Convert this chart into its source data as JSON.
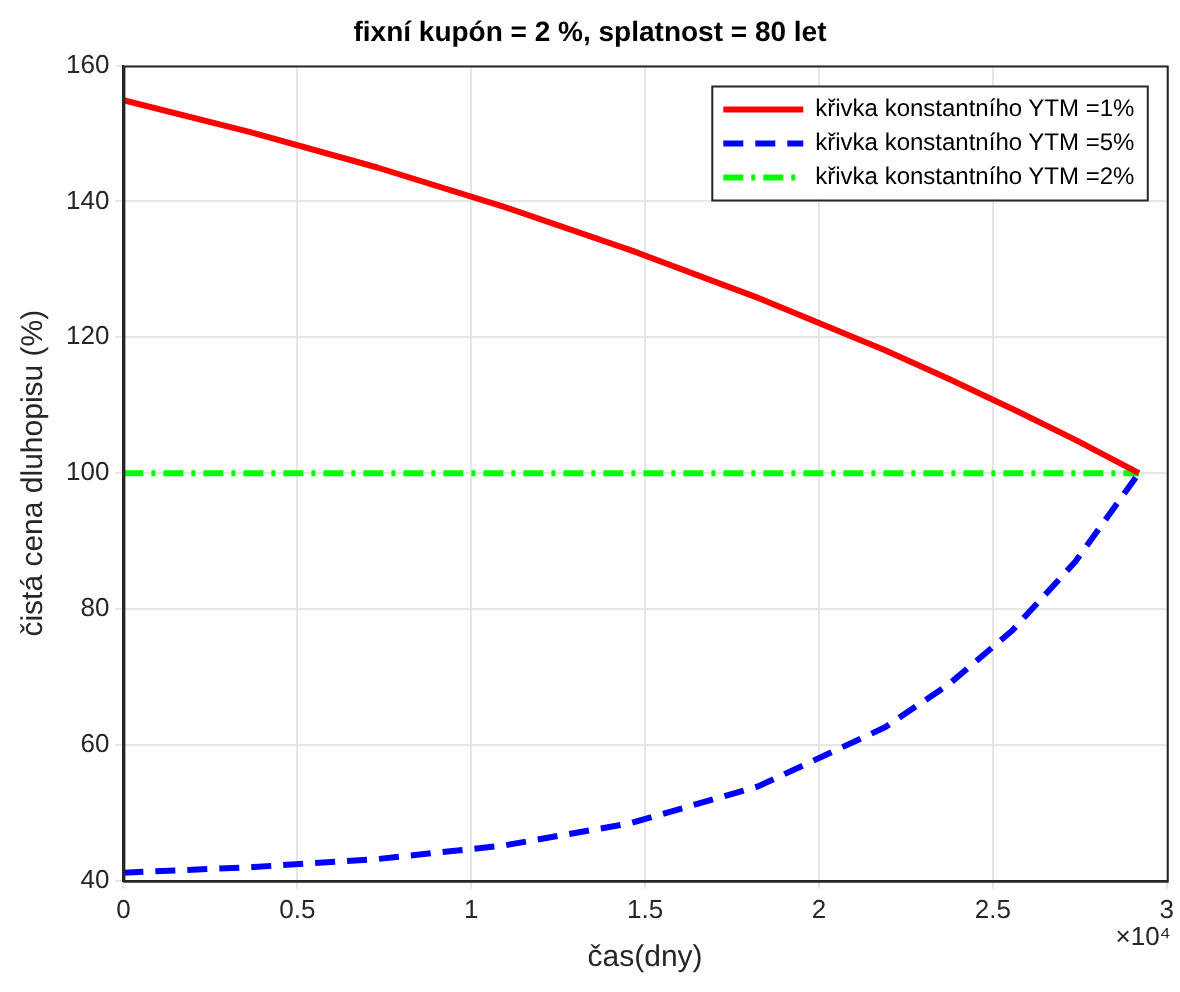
{
  "chart_data": {
    "type": "line",
    "title": "fixní kupón = 2 %, splatnost = 80 let",
    "xlabel": "čas(dny)",
    "ylabel": "čistá cena dluhopisu (%)",
    "x": [
      0,
      0.365,
      0.73,
      1.095,
      1.46,
      1.825,
      2.19,
      2.3725,
      2.555,
      2.7375,
      2.92
    ],
    "series": [
      {
        "name": "křivka konstantního YTM =1%",
        "color": "#ff0000",
        "line_style": "solid",
        "values": [
          154.9,
          150.2,
          145.0,
          139.2,
          132.8,
          125.8,
          118.1,
          113.9,
          109.5,
          104.9,
          100
        ]
      },
      {
        "name": "křivka konstantního YTM =5%",
        "color": "#0000ff",
        "line_style": "dashed",
        "values": [
          41.2,
          42.0,
          43.2,
          45.2,
          48.5,
          53.9,
          62.6,
          68.9,
          76.8,
          87.0,
          100
        ]
      },
      {
        "name": "křivka konstantního YTM =2%",
        "color": "#00ff00",
        "line_style": "dashdot",
        "x": [
          0,
          2.92
        ],
        "values": [
          100,
          100
        ]
      }
    ],
    "xlim": [
      0,
      3
    ],
    "xticks": [
      0,
      0.5,
      1,
      1.5,
      2,
      2.5,
      3
    ],
    "ylim": [
      40,
      160
    ],
    "yticks": [
      40,
      60,
      80,
      100,
      120,
      140,
      160
    ],
    "annotations": [
      "×10⁴"
    ],
    "grid": true,
    "legend": "top right",
    "marker": "none"
  }
}
